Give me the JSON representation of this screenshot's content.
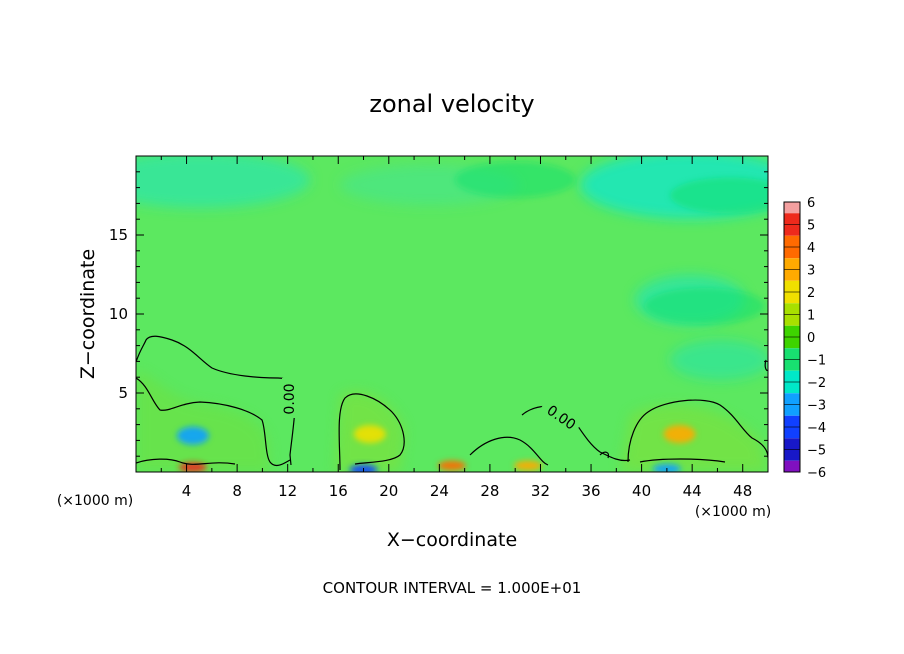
{
  "chart_data": {
    "type": "heatmap",
    "title": "zonal velocity",
    "xlabel": "X−coordinate",
    "ylabel": "Z−coordinate",
    "x_unit_left": "(×1000 m)",
    "x_unit_right": "(×1000 m)",
    "footer": "CONTOUR INTERVAL = 1.000E+01",
    "xlim": [
      0,
      50
    ],
    "ylim": [
      0,
      20
    ],
    "x_ticks": [
      4,
      8,
      12,
      16,
      20,
      24,
      28,
      32,
      36,
      40,
      44,
      48
    ],
    "y_ticks": [
      5,
      10,
      15
    ],
    "x_tick_labels": [
      "4",
      "8",
      "12",
      "16",
      "20",
      "24",
      "28",
      "32",
      "36",
      "40",
      "44",
      "48"
    ],
    "y_tick_labels": [
      "5",
      "10",
      "15"
    ],
    "colorbar": {
      "levels": [
        6,
        5,
        4,
        3,
        2,
        1,
        0,
        -1,
        -2,
        -3,
        -4,
        -5,
        -6
      ],
      "labels": [
        "6",
        "5",
        "4",
        "3",
        "2",
        "1",
        "0",
        "−1",
        "−2",
        "−3",
        "−4",
        "−5",
        "−6"
      ],
      "colors": [
        "#f4a0a0",
        "#ee2a1c",
        "#ff6a00",
        "#ffaa00",
        "#f0e000",
        "#a8e000",
        "#3ed400",
        "#18e070",
        "#00e8c8",
        "#10a0ff",
        "#1040ff",
        "#1818c8",
        "#8010c0"
      ]
    },
    "background_color": "#5ce860",
    "contour_labels": [
      {
        "text": "0.00",
        "x": 12.2,
        "z": 5.2
      },
      {
        "text": "0.00",
        "x": 33.5,
        "z": 3.3
      }
    ],
    "features": [
      {
        "x": 4.5,
        "z": 2.3,
        "value": -3
      },
      {
        "x": 4.5,
        "z": 0.3,
        "value": 5
      },
      {
        "x": 18.5,
        "z": 2.4,
        "value": 2
      },
      {
        "x": 25.0,
        "z": 0.4,
        "value": 4
      },
      {
        "x": 31.0,
        "z": 0.4,
        "value": 3
      },
      {
        "x": 43.0,
        "z": 2.4,
        "value": 3
      },
      {
        "x": 42.0,
        "z": 0.2,
        "value": -3
      },
      {
        "x": 18.0,
        "z": 0.15,
        "value": -4
      },
      {
        "x": 30.0,
        "z": 18.5,
        "value": -1
      },
      {
        "x": 47.0,
        "z": 17.5,
        "value": -1
      },
      {
        "x": 45.0,
        "z": 10.5,
        "value": -1
      }
    ]
  }
}
